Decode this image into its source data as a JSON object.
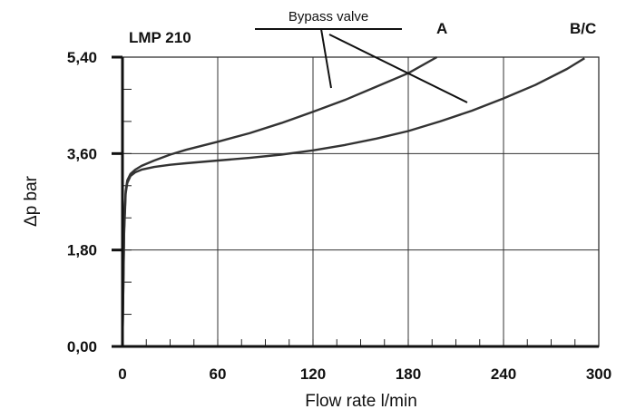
{
  "chart_data": {
    "type": "line",
    "title": "LMP 210",
    "xlabel": "Flow rate l/min",
    "ylabel": "Δp bar",
    "xlim": [
      0,
      300
    ],
    "ylim": [
      0,
      5.4
    ],
    "x_ticks": [
      0,
      60,
      120,
      180,
      240,
      300
    ],
    "y_ticks": [
      0,
      1.8,
      3.6,
      5.4
    ],
    "x_tick_labels": [
      "0",
      "60",
      "120",
      "180",
      "240",
      "300"
    ],
    "y_tick_labels": [
      "0,00",
      "1,80",
      "3,60",
      "5,40"
    ],
    "grid": true,
    "series": [
      {
        "name": "A",
        "x": [
          0,
          1,
          2,
          3,
          5,
          8,
          12,
          20,
          30,
          40,
          60,
          80,
          100,
          120,
          140,
          160,
          180,
          198
        ],
        "y": [
          0,
          2.2,
          2.9,
          3.1,
          3.22,
          3.3,
          3.37,
          3.47,
          3.58,
          3.67,
          3.82,
          3.98,
          4.17,
          4.38,
          4.6,
          4.85,
          5.1,
          5.4
        ]
      },
      {
        "name": "B/C",
        "x": [
          0,
          1,
          2,
          3,
          5,
          8,
          12,
          20,
          30,
          40,
          60,
          80,
          100,
          120,
          140,
          160,
          180,
          200,
          220,
          240,
          260,
          280,
          291
        ],
        "y": [
          0,
          2.1,
          2.85,
          3.05,
          3.18,
          3.25,
          3.3,
          3.35,
          3.39,
          3.42,
          3.47,
          3.52,
          3.58,
          3.66,
          3.76,
          3.88,
          4.02,
          4.2,
          4.4,
          4.63,
          4.88,
          5.18,
          5.38
        ]
      }
    ],
    "annotations": [
      {
        "text": "Bypass valve"
      }
    ]
  }
}
